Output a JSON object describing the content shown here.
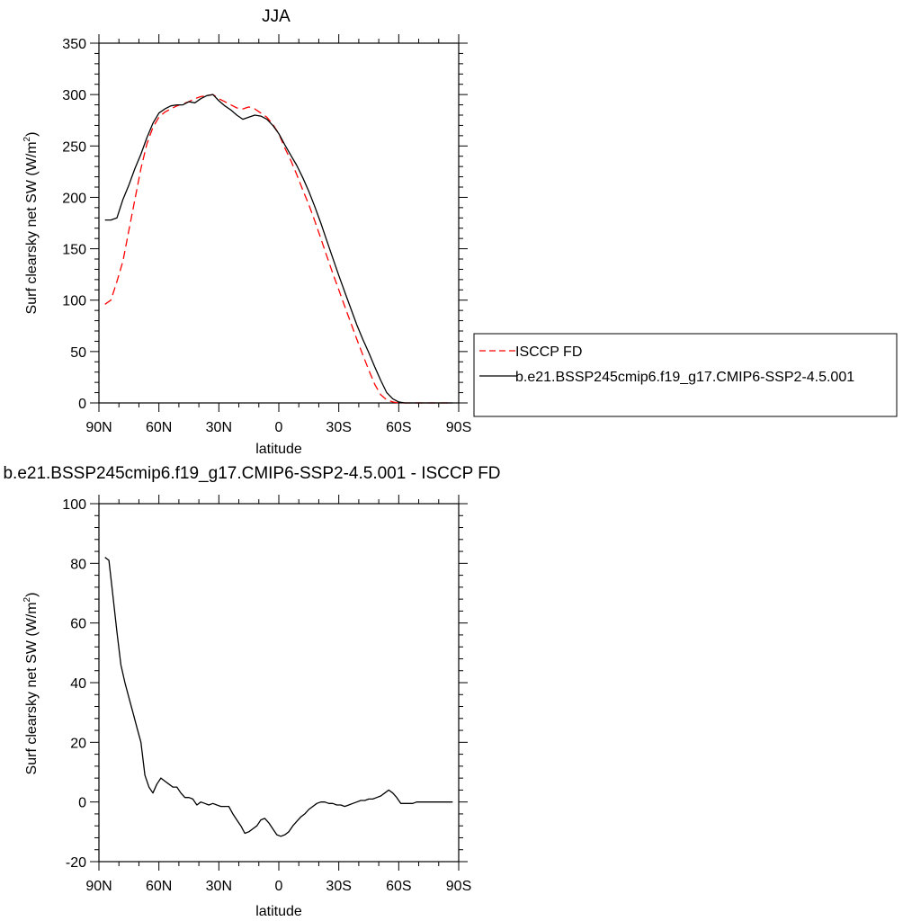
{
  "chart_data": [
    {
      "type": "line",
      "title": "JJA",
      "xlabel": "latitude",
      "ylabel": "Surf clearsky net SW (W/m",
      "ylabel_sup": "2",
      "ylabel_end": ")",
      "xlim": [
        90,
        -90
      ],
      "ylim": [
        0,
        350
      ],
      "x_ticks": [
        {
          "value": 90,
          "label": "90N"
        },
        {
          "value": 60,
          "label": "60N"
        },
        {
          "value": 30,
          "label": "30N"
        },
        {
          "value": 0,
          "label": "0"
        },
        {
          "value": -30,
          "label": "30S"
        },
        {
          "value": -60,
          "label": "60S"
        },
        {
          "value": -90,
          "label": "90S"
        }
      ],
      "y_ticks": [
        0,
        50,
        100,
        150,
        200,
        250,
        300,
        350
      ],
      "grid": false,
      "legend": "right",
      "series": [
        {
          "name": "ISCCP FD",
          "color": "#ff0000",
          "dash": "dashed",
          "x": [
            87,
            84,
            81,
            78,
            75,
            72,
            69,
            66,
            63,
            60,
            57,
            54,
            51,
            48,
            45,
            42,
            39,
            36,
            33,
            30,
            27,
            24,
            21,
            18,
            15,
            12,
            9,
            6,
            3,
            0,
            -3,
            -6,
            -9,
            -12,
            -15,
            -18,
            -21,
            -24,
            -27,
            -30,
            -33,
            -36,
            -39,
            -42,
            -45,
            -48,
            -51,
            -54,
            -57,
            -60,
            -63,
            -66,
            -69,
            -72,
            -75,
            -78,
            -81,
            -84,
            -87
          ],
          "values": [
            96,
            100,
            118,
            138,
            168,
            198,
            228,
            252,
            268,
            278,
            283,
            286,
            289,
            291,
            293,
            296,
            298,
            299,
            300,
            296,
            293,
            290,
            287,
            286,
            288,
            286,
            282,
            278,
            271,
            262,
            248,
            236,
            222,
            207,
            193,
            177,
            160,
            143,
            126,
            110,
            94,
            78,
            62,
            47,
            32,
            18,
            8,
            3,
            1,
            0,
            0,
            0,
            0,
            0,
            0,
            0,
            0,
            0,
            0
          ]
        },
        {
          "name": "b.e21.BSSP245cmip6.f19_g17.CMIP6-SSP2-4.5.001",
          "color": "#000000",
          "dash": "solid",
          "x": [
            87,
            84,
            81,
            78,
            75,
            72,
            69,
            66,
            63,
            60,
            57,
            54,
            51,
            48,
            45,
            42,
            39,
            36,
            33,
            30,
            27,
            24,
            21,
            18,
            15,
            12,
            9,
            6,
            3,
            0,
            -3,
            -6,
            -9,
            -12,
            -15,
            -18,
            -21,
            -24,
            -27,
            -30,
            -33,
            -36,
            -39,
            -42,
            -45,
            -48,
            -51,
            -54,
            -57,
            -60,
            -63,
            -66,
            -69,
            -72,
            -75,
            -78,
            -81,
            -84,
            -87
          ],
          "values": [
            178,
            178,
            180,
            198,
            212,
            228,
            242,
            258,
            272,
            282,
            286,
            289,
            290,
            290,
            293,
            292,
            296,
            299,
            300,
            294,
            289,
            285,
            280,
            276,
            278,
            280,
            279,
            276,
            270,
            262,
            251,
            241,
            231,
            219,
            206,
            191,
            175,
            158,
            141,
            124,
            108,
            92,
            76,
            62,
            49,
            35,
            22,
            10,
            4,
            1,
            0,
            0,
            0,
            0,
            0,
            0,
            0,
            0,
            0
          ]
        }
      ]
    },
    {
      "type": "line",
      "title": "b.e21.BSSP245cmip6.f19_g17.CMIP6-SSP2-4.5.001 - ISCCP FD",
      "xlabel": "latitude",
      "ylabel": "Surf clearsky net SW (W/m",
      "ylabel_sup": "2",
      "ylabel_end": ")",
      "xlim": [
        90,
        -90
      ],
      "ylim": [
        -20,
        100
      ],
      "x_ticks": [
        {
          "value": 90,
          "label": "90N"
        },
        {
          "value": 60,
          "label": "60N"
        },
        {
          "value": 30,
          "label": "30N"
        },
        {
          "value": 0,
          "label": "0"
        },
        {
          "value": -30,
          "label": "30S"
        },
        {
          "value": -60,
          "label": "60S"
        },
        {
          "value": -90,
          "label": "90S"
        }
      ],
      "y_ticks": [
        -20,
        0,
        20,
        40,
        60,
        80,
        100
      ],
      "grid": false,
      "series": [
        {
          "color": "#000000",
          "dash": "solid",
          "x": [
            87,
            85,
            83,
            81,
            79,
            77,
            75,
            73,
            71,
            69,
            67,
            65,
            63,
            61,
            59,
            57,
            55,
            53,
            51,
            49,
            47,
            45,
            43,
            41,
            39,
            37,
            35,
            33,
            31,
            29,
            27,
            25,
            23,
            21,
            19,
            17,
            15,
            13,
            11,
            9,
            7,
            5,
            3,
            1,
            -1,
            -3,
            -5,
            -7,
            -9,
            -11,
            -13,
            -15,
            -17,
            -19,
            -21,
            -23,
            -25,
            -27,
            -29,
            -31,
            -33,
            -35,
            -37,
            -39,
            -41,
            -43,
            -45,
            -47,
            -49,
            -51,
            -53,
            -55,
            -57,
            -59,
            -61,
            -63,
            -65,
            -67,
            -69,
            -71,
            -73,
            -75,
            -77,
            -79,
            -81,
            -83,
            -85,
            -87
          ],
          "values": [
            82,
            81,
            69,
            57,
            46,
            40,
            35,
            30,
            25,
            20,
            9,
            5,
            3,
            6,
            8,
            7,
            6,
            5,
            5,
            3,
            1.5,
            1.5,
            1,
            -1,
            0,
            -0.5,
            -1,
            -0.5,
            -1,
            -1.5,
            -1.5,
            -1.5,
            -4,
            -6,
            -8,
            -10.5,
            -10,
            -9,
            -8,
            -6,
            -5.5,
            -7,
            -9,
            -11,
            -11.5,
            -11,
            -10,
            -8,
            -6.5,
            -5,
            -4,
            -2.5,
            -1.5,
            -0.5,
            0,
            0,
            -0.5,
            -0.5,
            -1,
            -1,
            -1.5,
            -1,
            -0.5,
            0,
            0.5,
            0.5,
            1,
            1,
            1.5,
            2,
            3,
            4,
            3,
            1.5,
            -0.5,
            -0.5,
            -0.5,
            -0.5,
            0,
            0,
            0,
            0,
            0,
            0,
            0,
            0,
            0,
            0
          ]
        }
      ]
    }
  ]
}
